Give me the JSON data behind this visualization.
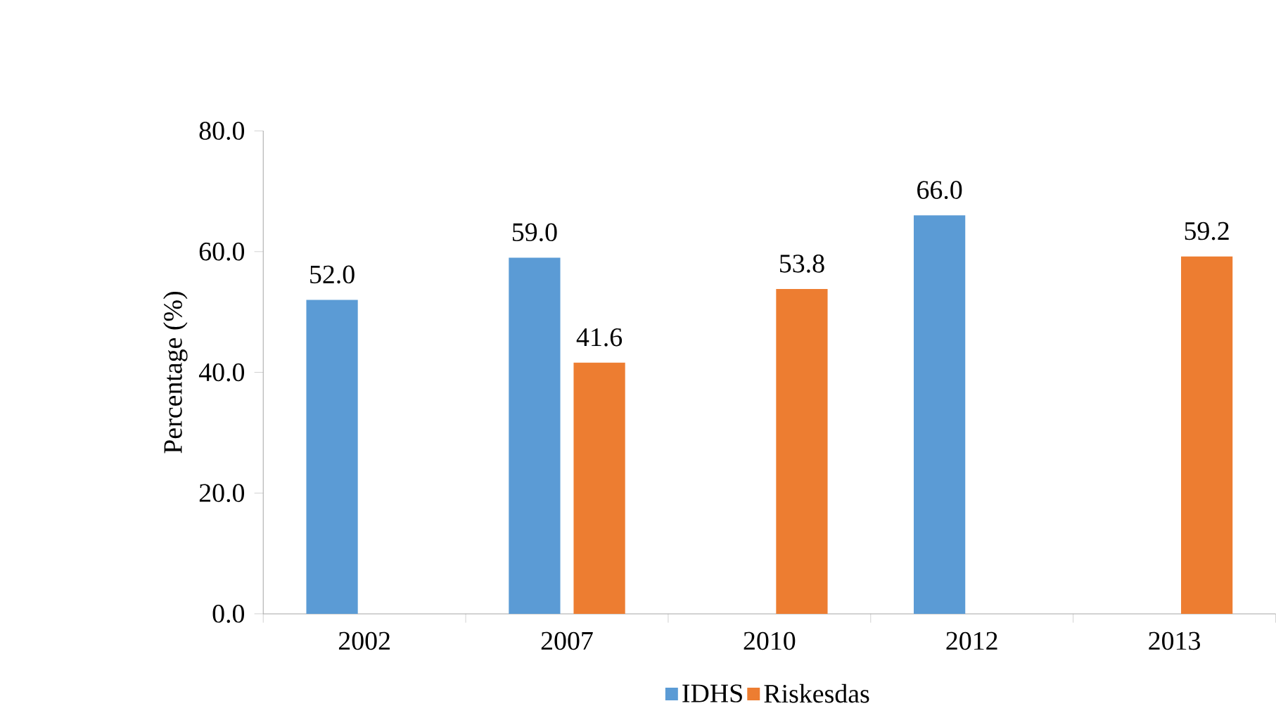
{
  "chart_data": {
    "type": "bar",
    "ylabel": "Percentage (%)",
    "categories": [
      "2002",
      "2007",
      "2010",
      "2012",
      "2013"
    ],
    "series": [
      {
        "name": "IDHS",
        "color": "#5b9bd5",
        "values": [
          52.0,
          59.0,
          null,
          66.0,
          null
        ],
        "value_labels": [
          "52.0",
          "59.0",
          null,
          "66.0",
          null
        ]
      },
      {
        "name": "Riskesdas",
        "color": "#ed7d31",
        "values": [
          null,
          41.6,
          53.8,
          null,
          59.2
        ],
        "value_labels": [
          null,
          "41.6",
          "53.8",
          null,
          "59.2"
        ]
      }
    ],
    "ylim": [
      0,
      80
    ],
    "yticks": [
      {
        "value": 0,
        "label": "0.0"
      },
      {
        "value": 20,
        "label": "20.0"
      },
      {
        "value": 40,
        "label": "40.0"
      },
      {
        "value": 60,
        "label": "60.0"
      },
      {
        "value": 80,
        "label": "80.0"
      }
    ],
    "grid": false,
    "legend": "bottom"
  }
}
